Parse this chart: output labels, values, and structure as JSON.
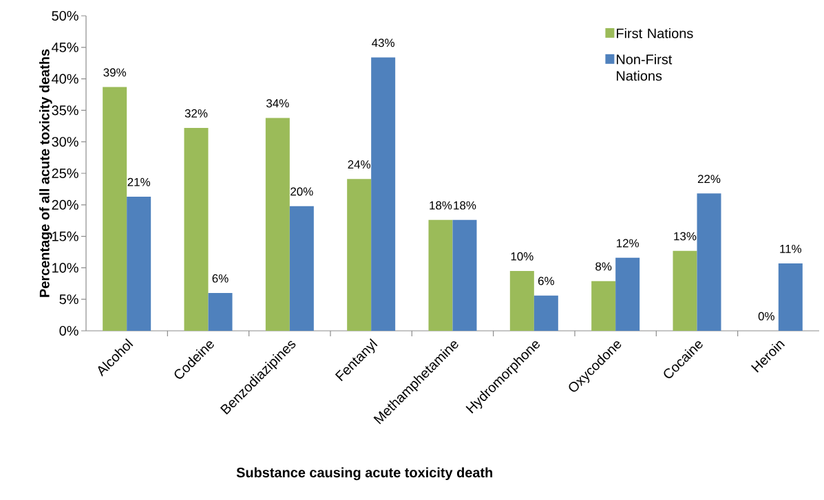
{
  "chart_data": {
    "type": "bar",
    "xlabel": "Substance causing acute toxicity death",
    "ylabel": "Percentage of all acute toxicity deaths",
    "categories": [
      "Alcohol",
      "Codeine",
      "Benzodiazipines",
      "Fentanyl",
      "Methamphetamine",
      "Hydromorphone",
      "Oxycodone",
      "Cocaine",
      "Heroin"
    ],
    "series": [
      {
        "name": "First Nations",
        "color": "#9bbb59",
        "values": [
          38.7,
          32.2,
          33.8,
          24.1,
          17.6,
          9.5,
          7.9,
          12.7,
          0
        ],
        "value_labels": [
          "39%",
          "32%",
          "34%",
          "24%",
          "18%",
          "10%",
          "8%",
          "13%",
          "0%"
        ]
      },
      {
        "name": "Non-First Nations",
        "color": "#4f81bd",
        "values": [
          21.3,
          6.0,
          19.8,
          43.4,
          17.6,
          5.6,
          11.6,
          21.8,
          10.7
        ],
        "value_labels": [
          "21%",
          "6%",
          "20%",
          "43%",
          "18%",
          "6%",
          "12%",
          "22%",
          "11%"
        ]
      }
    ],
    "ylim": [
      0,
      50
    ],
    "yticks": [
      {
        "value": 0,
        "label": "0%"
      },
      {
        "value": 5,
        "label": "5%"
      },
      {
        "value": 10,
        "label": "10%"
      },
      {
        "value": 15,
        "label": "15%"
      },
      {
        "value": 20,
        "label": "20%"
      },
      {
        "value": 25,
        "label": "25%"
      },
      {
        "value": 30,
        "label": "30%"
      },
      {
        "value": 35,
        "label": "35%"
      },
      {
        "value": 40,
        "label": "40%"
      },
      {
        "value": 45,
        "label": "45%"
      },
      {
        "value": 50,
        "label": "50%"
      }
    ],
    "legend": "top right",
    "grid": false
  }
}
